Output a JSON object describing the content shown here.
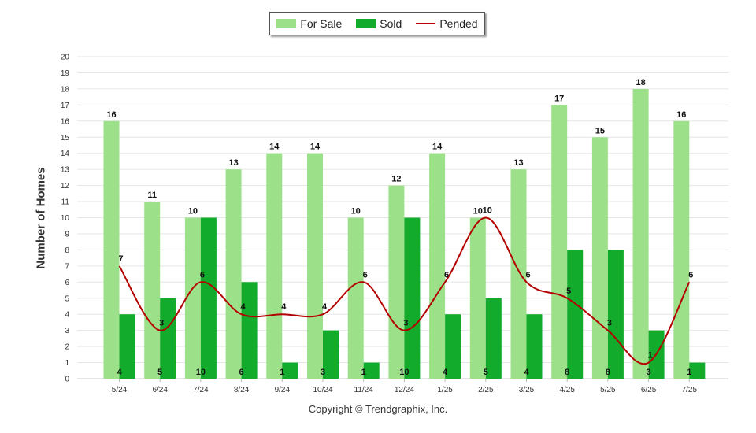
{
  "chart_data": {
    "type": "bar",
    "ylabel": "Number of Homes",
    "xlabel": "",
    "ylim": [
      0,
      20
    ],
    "yticks": [
      0,
      1,
      2,
      3,
      4,
      5,
      6,
      7,
      8,
      9,
      10,
      11,
      12,
      13,
      14,
      15,
      16,
      17,
      18,
      19,
      20
    ],
    "categories": [
      "5/24",
      "6/24",
      "7/24",
      "8/24",
      "9/24",
      "10/24",
      "11/24",
      "12/24",
      "1/25",
      "2/25",
      "3/25",
      "4/25",
      "5/25",
      "6/25",
      "7/25"
    ],
    "series": [
      {
        "name": "For Sale",
        "type": "bar",
        "color": "#9de08a",
        "values": [
          16,
          11,
          10,
          13,
          14,
          14,
          10,
          12,
          14,
          10,
          13,
          17,
          15,
          18,
          16
        ]
      },
      {
        "name": "Sold",
        "type": "bar",
        "color": "#12ab2b",
        "values": [
          4,
          5,
          10,
          6,
          1,
          3,
          1,
          10,
          4,
          5,
          4,
          8,
          8,
          3,
          1
        ]
      },
      {
        "name": "Pended",
        "type": "line",
        "color": "#b40000",
        "values": [
          7,
          3,
          6,
          4,
          4,
          4,
          6,
          3,
          6,
          10,
          6,
          5,
          3,
          1,
          6
        ]
      }
    ],
    "grid": true,
    "legend_position": "top-center"
  },
  "footer": "Copyright © Trendgraphix, Inc."
}
